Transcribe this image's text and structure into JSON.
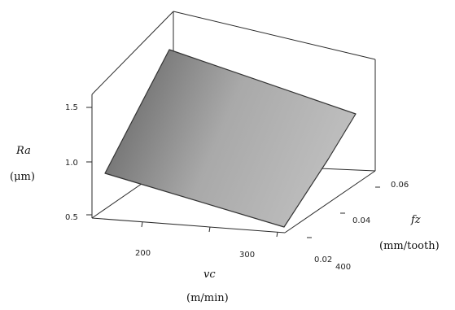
{
  "chart_data": {
    "type": "surface",
    "title": "",
    "x_axis": {
      "symbol": "vc",
      "unit": "(m/min)",
      "ticks": [
        200,
        300,
        400
      ],
      "range": [
        150,
        450
      ]
    },
    "y_axis": {
      "symbol": "fz",
      "unit": "(mm/tooth)",
      "ticks": [
        "0.02",
        "0.04",
        "0.06"
      ],
      "range": [
        0.01,
        0.07
      ]
    },
    "z_axis": {
      "symbol": "Ra",
      "unit": "(μm)",
      "ticks": [
        "0.5",
        "1.0",
        "1.5"
      ],
      "range": [
        0.4,
        1.9
      ]
    },
    "surface": {
      "vc": [
        170,
        440
      ],
      "fz": [
        0.015,
        0.065
      ],
      "Ra_grid": [
        [
          0.85,
          1.62
        ],
        [
          0.62,
          1.45
        ]
      ],
      "fill": "#9a9a9a",
      "edge": "#333333"
    },
    "grid": false
  }
}
